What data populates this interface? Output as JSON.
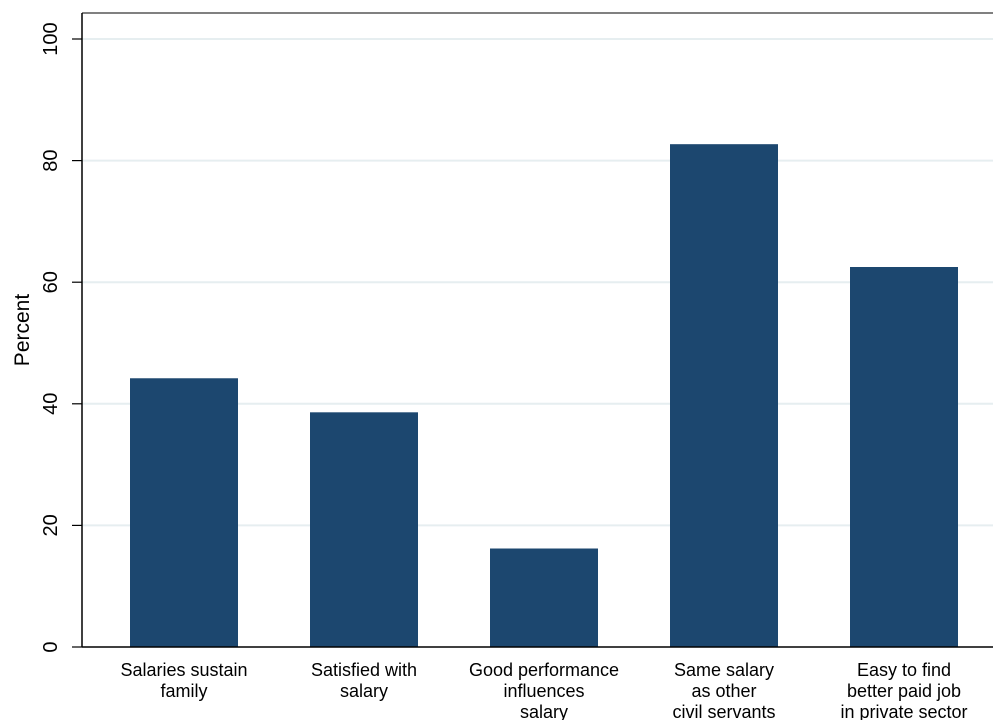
{
  "chart_data": {
    "type": "bar",
    "categories": [
      [
        "Salaries sustain",
        "family"
      ],
      [
        "Satisfied with",
        "salary"
      ],
      [
        "Good performance",
        "influences",
        "salary"
      ],
      [
        "Same salary",
        "as other",
        "civil servants"
      ],
      [
        "Easy to find",
        "better paid job",
        "in private sector"
      ]
    ],
    "values": [
      44.2,
      38.6,
      16.2,
      82.7,
      62.5
    ],
    "ylabel": "Percent",
    "ylim": [
      0,
      100
    ],
    "yticks": [
      "0",
      "20",
      "40",
      "60",
      "80",
      "100"
    ],
    "grid": true,
    "colors": {
      "bar": "#1c476f",
      "grid": "#e6eef0",
      "axis": "#000000"
    }
  }
}
